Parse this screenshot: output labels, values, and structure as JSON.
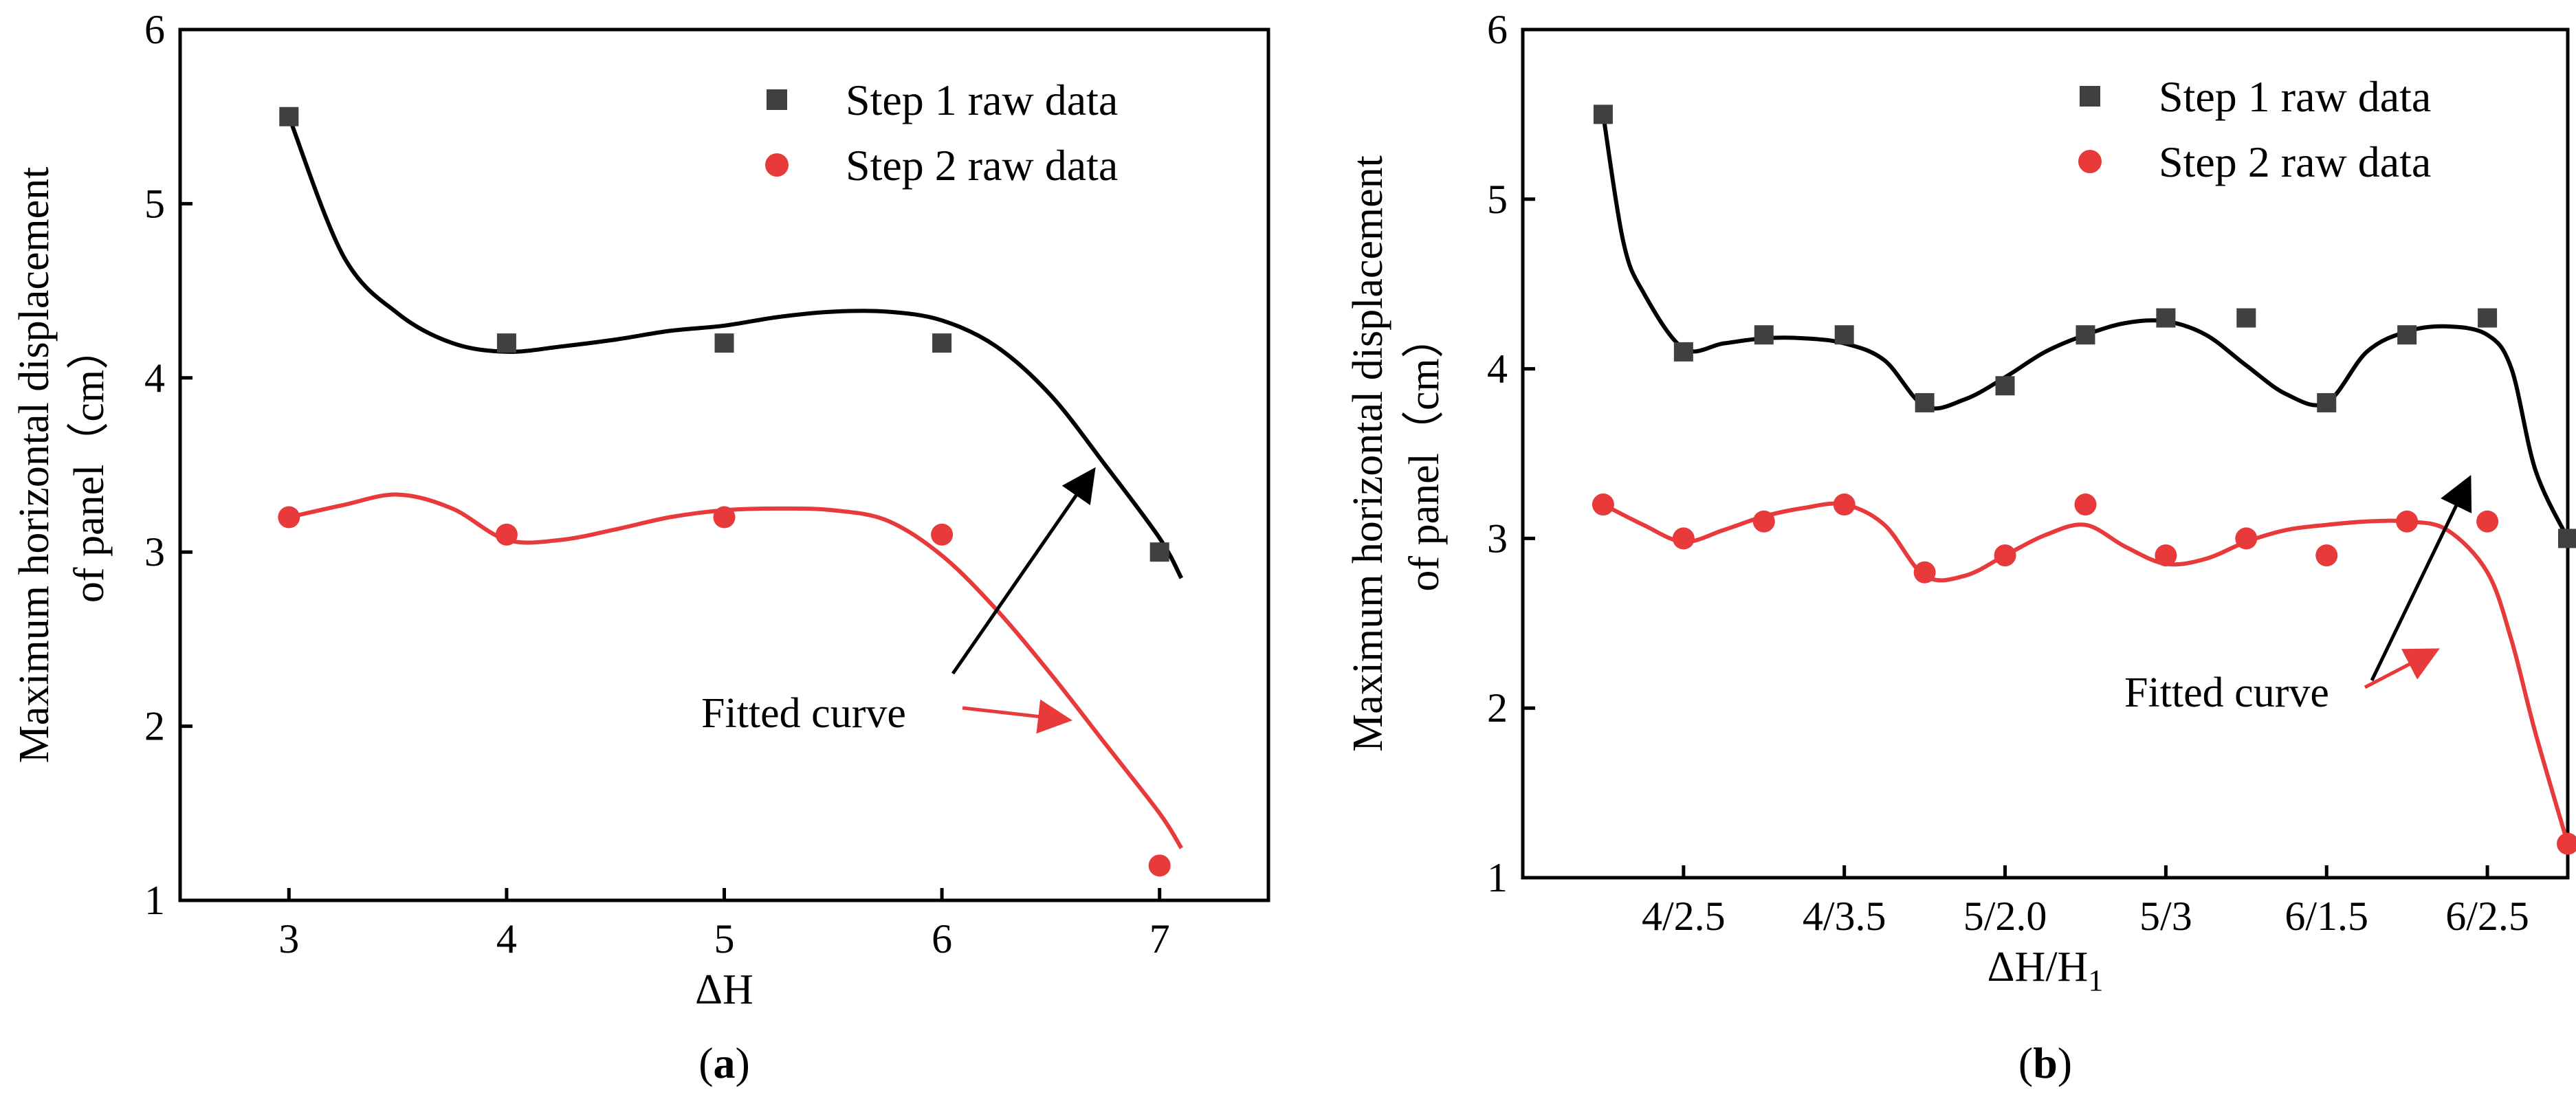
{
  "chart_data": [
    {
      "type": "scatter",
      "panel_label": "a",
      "xlabel": "ΔH",
      "ylabel_line1": "Maximum horizontal displacement",
      "ylabel_line2": "of panel（cm）",
      "xlim": [
        2.5,
        7.5
      ],
      "ylim": [
        1,
        6
      ],
      "x_ticks": [
        "3",
        "4",
        "5",
        "6",
        "7"
      ],
      "y_ticks": [
        "1",
        "2",
        "3",
        "4",
        "5",
        "6"
      ],
      "series": [
        {
          "name": "Step 1 raw data",
          "marker": "square",
          "color": "#404040",
          "x": [
            3,
            4,
            5,
            6,
            7
          ],
          "values": [
            5.5,
            4.2,
            4.2,
            4.2,
            3.0
          ],
          "fit_x": [
            3.0,
            3.25,
            3.5,
            3.75,
            4.0,
            4.25,
            4.5,
            4.75,
            5.0,
            5.25,
            5.5,
            5.75,
            6.0,
            6.25,
            6.5,
            6.75,
            7.0,
            7.1
          ],
          "fit_y": [
            5.5,
            4.7,
            4.37,
            4.2,
            4.15,
            4.18,
            4.22,
            4.27,
            4.3,
            4.35,
            4.38,
            4.38,
            4.33,
            4.18,
            3.9,
            3.5,
            3.08,
            2.85
          ]
        },
        {
          "name": "Step 2 raw data",
          "marker": "circle",
          "color": "#e8393b",
          "x": [
            3,
            4,
            5,
            6,
            7
          ],
          "values": [
            3.2,
            3.1,
            3.2,
            3.1,
            1.2
          ],
          "fit_x": [
            3.0,
            3.25,
            3.5,
            3.75,
            4.0,
            4.25,
            4.5,
            4.75,
            5.0,
            5.25,
            5.5,
            5.75,
            6.0,
            6.25,
            6.5,
            6.75,
            7.0,
            7.1
          ],
          "fit_y": [
            3.2,
            3.27,
            3.33,
            3.25,
            3.07,
            3.07,
            3.13,
            3.2,
            3.24,
            3.25,
            3.24,
            3.18,
            2.98,
            2.67,
            2.3,
            1.9,
            1.5,
            1.3
          ]
        }
      ],
      "annotation": {
        "text": "Fitted curve",
        "color_black": "#000000",
        "color_red": "#e8393b"
      }
    },
    {
      "type": "scatter",
      "panel_label": "b",
      "xlabel": "ΔH/H",
      "xlabel_sub": "1",
      "ylabel_line1": "Maximum horizontal displacement",
      "ylabel_line2": "of panel（cm）",
      "xlim": [
        0,
        13
      ],
      "ylim": [
        1,
        6
      ],
      "x_ticks": [
        "4/2.5",
        "4/3.5",
        "5/2.0",
        "5/3",
        "6/1.5",
        "6/2.5"
      ],
      "x_tick_positions": [
        2,
        4,
        6,
        8,
        10,
        12
      ],
      "y_ticks": [
        "1",
        "2",
        "3",
        "4",
        "5",
        "6"
      ],
      "series": [
        {
          "name": "Step 1 raw data",
          "marker": "square",
          "color": "#404040",
          "x": [
            1,
            2,
            3,
            4,
            5,
            6,
            7,
            8,
            9,
            10,
            11,
            12,
            13
          ],
          "values": [
            5.5,
            4.1,
            4.2,
            4.2,
            3.8,
            3.9,
            4.2,
            4.3,
            4.3,
            3.8,
            4.2,
            4.3,
            3.0
          ],
          "fit_x": [
            1.0,
            1.25,
            1.5,
            2.0,
            2.5,
            3.0,
            3.5,
            4.0,
            4.5,
            5.0,
            5.5,
            6.0,
            6.5,
            7.0,
            7.5,
            8.0,
            8.5,
            9.0,
            9.5,
            10.0,
            10.5,
            11.0,
            11.5,
            12.0,
            12.3,
            12.6,
            13.0
          ],
          "fit_y": [
            5.5,
            4.75,
            4.45,
            4.12,
            4.15,
            4.18,
            4.18,
            4.15,
            4.05,
            3.78,
            3.82,
            3.95,
            4.1,
            4.2,
            4.27,
            4.28,
            4.2,
            4.02,
            3.85,
            3.8,
            4.1,
            4.22,
            4.25,
            4.2,
            4.0,
            3.4,
            3.0
          ]
        },
        {
          "name": "Step 2 raw data",
          "marker": "circle",
          "color": "#e8393b",
          "x": [
            1,
            2,
            3,
            4,
            5,
            6,
            7,
            8,
            9,
            10,
            11,
            12,
            13
          ],
          "values": [
            3.2,
            3.0,
            3.1,
            3.2,
            2.8,
            2.9,
            3.2,
            2.9,
            3.0,
            2.9,
            3.1,
            3.1,
            1.2
          ],
          "fit_x": [
            1.0,
            1.5,
            2.0,
            2.5,
            3.0,
            3.5,
            4.0,
            4.5,
            5.0,
            5.5,
            6.0,
            6.5,
            7.0,
            7.5,
            8.0,
            8.5,
            9.0,
            9.5,
            10.0,
            10.5,
            11.0,
            11.5,
            12.0,
            12.3,
            12.6,
            13.0
          ],
          "fit_y": [
            3.2,
            3.08,
            2.98,
            3.05,
            3.13,
            3.18,
            3.2,
            3.08,
            2.78,
            2.78,
            2.9,
            3.02,
            3.08,
            2.95,
            2.85,
            2.88,
            2.98,
            3.05,
            3.08,
            3.1,
            3.1,
            3.05,
            2.8,
            2.4,
            1.85,
            1.2
          ]
        }
      ],
      "annotation": {
        "text": "Fitted curve",
        "color_black": "#000000",
        "color_red": "#e8393b"
      }
    }
  ]
}
